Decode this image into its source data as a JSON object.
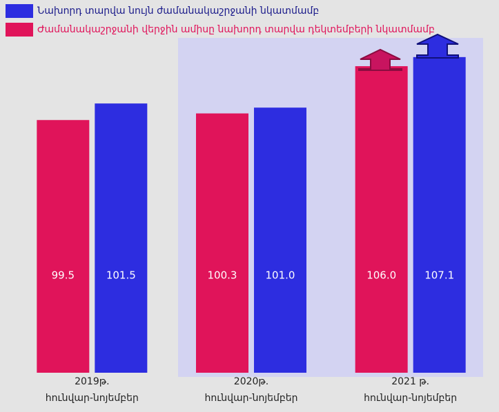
{
  "chart_data": {
    "type": "bar",
    "categories": [
      [
        "2019թ.",
        "հունվար-նոյեմբեր"
      ],
      [
        "2020թ.",
        "հունվար-նոյեմբեր"
      ],
      [
        "2021 թ.",
        "հունվար-նոյեմբեր"
      ]
    ],
    "series": [
      {
        "name": "Ժամանակաշրջանի վերջին ամիսը նախորդ տարվա դեկտեմբերի նկատմամբ",
        "color": "#e0145a",
        "values": [
          99.5,
          100.3,
          106.0
        ],
        "value_labels": [
          "99.5",
          "100.3",
          "106.0"
        ]
      },
      {
        "name": "Նախորդ տարվա նույն ժամանակաշրջանի նկատմամբ",
        "color": "#2d2de0",
        "values": [
          101.5,
          101.0,
          107.1
        ],
        "value_labels": [
          "101.5",
          "101.0",
          "107.1"
        ]
      }
    ],
    "ylim": [
      69,
      109
    ]
  }
}
